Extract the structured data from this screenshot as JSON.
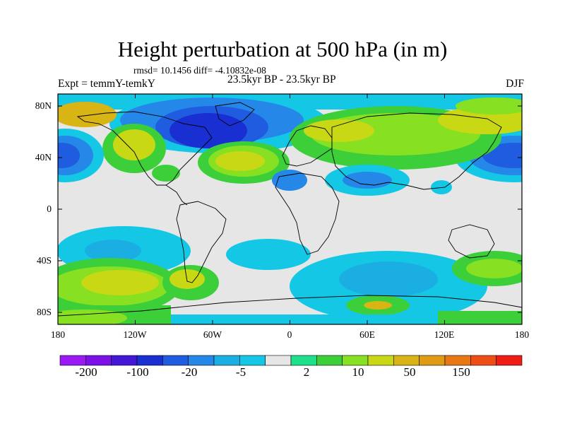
{
  "title": "Height perturbation at 500 hPa (in m)",
  "stats_line": "rmsd= 10.1456 diff= -4.10832e-08",
  "left_label": "Expt = temmY-temkY",
  "center_label": "23.5kyr BP - 23.5kyr BP",
  "right_label": "DJF",
  "latitude_labels": [
    "80N",
    "40N",
    "0",
    "40S",
    "80S"
  ],
  "longitude_labels": [
    "180",
    "120W",
    "60W",
    "0",
    "60E",
    "120E",
    "180"
  ],
  "colorbar": {
    "colors": [
      "#9b19f5",
      "#7b10e8",
      "#4316d8",
      "#1a2fd2",
      "#1f5ce0",
      "#2588e8",
      "#1aaee3",
      "#14c8e5",
      "#e6e6e6",
      "#1fe08a",
      "#3ccf3a",
      "#88e022",
      "#c8d814",
      "#d8b514",
      "#e09b14",
      "#e87814",
      "#ef4d16",
      "#ee1c12"
    ],
    "labels": [
      "-200",
      "-100",
      "-20",
      "-5",
      "2",
      "10",
      "50",
      "150"
    ]
  },
  "colors": {
    "neutral": "#e6e6e6",
    "light_cyan": "#14c8e5",
    "cyan": "#1aaee3",
    "blue": "#2588e8",
    "deep_blue": "#1f5ce0",
    "navy": "#1a2fd2",
    "teal_green": "#1fe08a",
    "green": "#3ccf3a",
    "yellow_green": "#88e022",
    "yellow": "#c8d814",
    "gold": "#d8b514"
  }
}
